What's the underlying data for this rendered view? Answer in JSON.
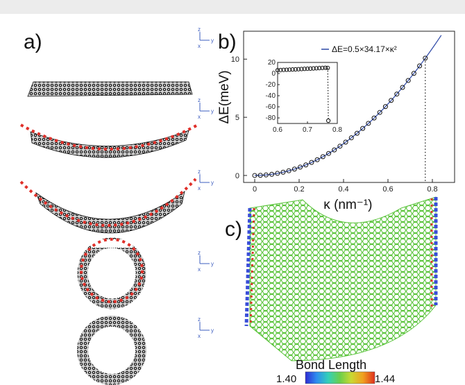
{
  "figure": {
    "panel_labels": {
      "a": "a)",
      "b": "b)",
      "c": "c)"
    },
    "coordinate_axes": {
      "z": "z",
      "y": "y",
      "x": "x",
      "color": "#3b5cbf"
    }
  },
  "chart_data": {
    "type": "scatter",
    "xlabel": "κ (nm⁻¹)",
    "ylabel": "ΔE(meV)",
    "xlim": [
      -0.05,
      0.9
    ],
    "ylim": [
      -0.6,
      12.4
    ],
    "xticks": [
      "0",
      "0.2",
      "0.4",
      "0.6",
      "0.8"
    ],
    "yticks": [
      "0",
      "5",
      "10"
    ],
    "legend": {
      "label": "ΔE=0.5×34.17×κ²",
      "placement": "top-right"
    },
    "fit": {
      "coefficient": 17.085,
      "color": "#2b47a6"
    },
    "series": [
      {
        "marker": "open-circle",
        "x": [
          0.0,
          0.0256,
          0.0512,
          0.0768,
          0.1024,
          0.128,
          0.1536,
          0.1792,
          0.2048,
          0.2304,
          0.256,
          0.2816,
          0.3072,
          0.3328,
          0.3584,
          0.384,
          0.4096,
          0.4352,
          0.4608,
          0.4864,
          0.512,
          0.5376,
          0.5632,
          0.5888,
          0.6144,
          0.64,
          0.6656,
          0.6912,
          0.7168,
          0.7424,
          0.768
        ],
        "y": [
          0.0,
          0.011,
          0.045,
          0.101,
          0.179,
          0.28,
          0.403,
          0.549,
          0.717,
          0.907,
          1.12,
          1.355,
          1.612,
          1.892,
          2.195,
          2.519,
          2.866,
          3.236,
          3.628,
          4.042,
          4.479,
          4.938,
          5.419,
          5.923,
          6.45,
          6.998,
          7.57,
          8.163,
          8.779,
          9.417,
          10.08
        ]
      }
    ],
    "cutoff_x": 0.768,
    "inset": {
      "xlim": [
        0.6,
        0.8
      ],
      "ylim": [
        -90,
        20
      ],
      "xticks": [
        "0.6",
        "0.7",
        "0.8"
      ],
      "yticks": [
        "20",
        "0",
        "-20",
        "-40",
        "-60",
        "-80"
      ],
      "x": [
        0.6,
        0.61,
        0.62,
        0.63,
        0.64,
        0.65,
        0.66,
        0.67,
        0.68,
        0.69,
        0.7,
        0.71,
        0.72,
        0.73,
        0.74,
        0.75,
        0.76,
        0.768,
        0.77
      ],
      "y": [
        6,
        6.3,
        6.6,
        6.8,
        7,
        7.3,
        7.5,
        7.8,
        8.1,
        8.4,
        8.6,
        8.9,
        9.2,
        9.5,
        9.8,
        10.1,
        10.4,
        10.1,
        -85
      ]
    }
  },
  "colorbar": {
    "title": "Bond Length",
    "min_label": "1.40",
    "max_label": "1.44",
    "colors": [
      "#2d2ad1",
      "#2d8cf0",
      "#33d0b8",
      "#6ccf4a",
      "#c9d933",
      "#f0a020",
      "#e0301e"
    ],
    "mesh_color": "#5bc43c",
    "edge_color_a": "#3a4fd8",
    "edge_color_b": "#d73a2a"
  }
}
